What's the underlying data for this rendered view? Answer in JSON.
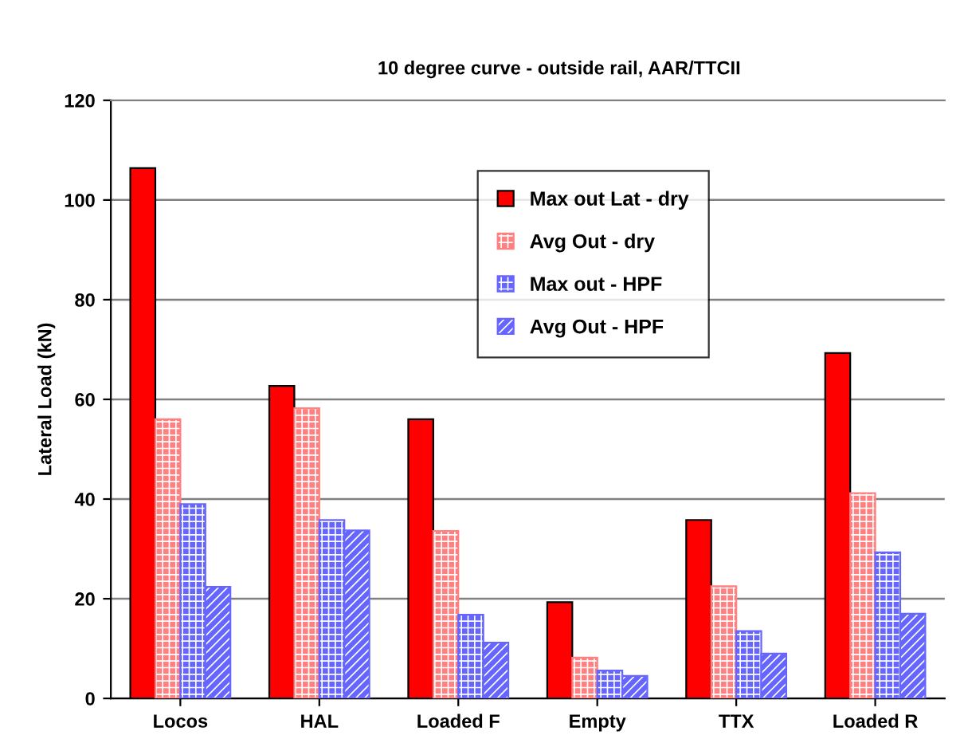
{
  "chart_data": {
    "type": "bar",
    "title": "10 degree curve - outside rail, AAR/TTCII",
    "ylabel": "Lateral Load (kN)",
    "categories": [
      "Locos",
      "HAL",
      "Loaded F",
      "Empty",
      "TTX",
      "Loaded R"
    ],
    "series": [
      {
        "name": "Max out Lat - dry",
        "color": "#ff0000",
        "values": [
          106.4,
          62.7,
          56.0,
          19.3,
          35.8,
          69.3
        ]
      },
      {
        "name": "Avg Out - dry",
        "color": "#ff8080",
        "values": [
          56.0,
          58.2,
          33.6,
          8.2,
          22.5,
          41.2
        ]
      },
      {
        "name": "Max out - HPF",
        "color": "#6666ff",
        "values": [
          39.0,
          35.8,
          16.8,
          5.6,
          13.5,
          29.3
        ]
      },
      {
        "name": "Avg Out - HPF",
        "color": "#6666ff",
        "values": [
          22.4,
          33.7,
          11.2,
          4.5,
          9.0,
          17.0
        ]
      }
    ],
    "ylim": [
      0,
      120
    ],
    "yticks": [
      0,
      20,
      40,
      60,
      80,
      100,
      120
    ],
    "grid": "y",
    "legend": "top right"
  }
}
